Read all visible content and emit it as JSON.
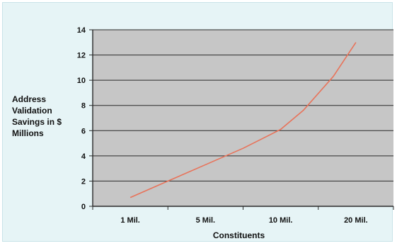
{
  "chart_data": {
    "type": "line",
    "title": "",
    "xlabel": "Constituents",
    "ylabel_lines": [
      "Address",
      "Validation",
      "Savings in $",
      "Millions"
    ],
    "categories": [
      "1 Mil.",
      "5 Mil.",
      "10 Mil.",
      "20 Mil."
    ],
    "ylim": [
      0,
      14
    ],
    "yticks": [
      0,
      2,
      4,
      6,
      8,
      10,
      12,
      14
    ],
    "grid": true,
    "legend": "none",
    "line_color": "#e8735a",
    "plot_background": "#c6c6c6",
    "gridline_color": "#2a2a2a",
    "series": [
      {
        "x": [
          0.0,
          0.5,
          1.0,
          1.5,
          2.0,
          2.3,
          2.7,
          3.0
        ],
        "values": [
          0.7,
          2.0,
          3.3,
          4.6,
          6.1,
          7.6,
          10.3,
          13.0
        ]
      }
    ]
  }
}
